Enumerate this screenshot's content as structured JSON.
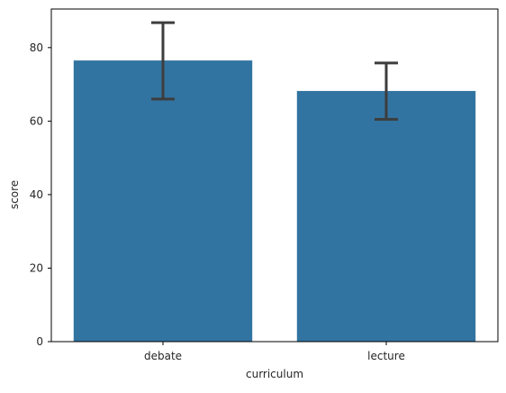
{
  "chart_data": {
    "type": "bar",
    "title": "",
    "xlabel": "curriculum",
    "ylabel": "score",
    "categories": [
      "debate",
      "lecture"
    ],
    "values": [
      76.5,
      68.2
    ],
    "error_low": [
      66.0,
      60.5
    ],
    "error_high": [
      86.8,
      75.8
    ],
    "ylim": [
      0,
      90.5
    ],
    "yticks": [
      0,
      20,
      40,
      60,
      80
    ],
    "grid": false,
    "legend": "none",
    "colors": {
      "bar": "#3274a1",
      "errorbar": "#3d3d3d",
      "axis": "#000000",
      "text": "#262626"
    }
  }
}
